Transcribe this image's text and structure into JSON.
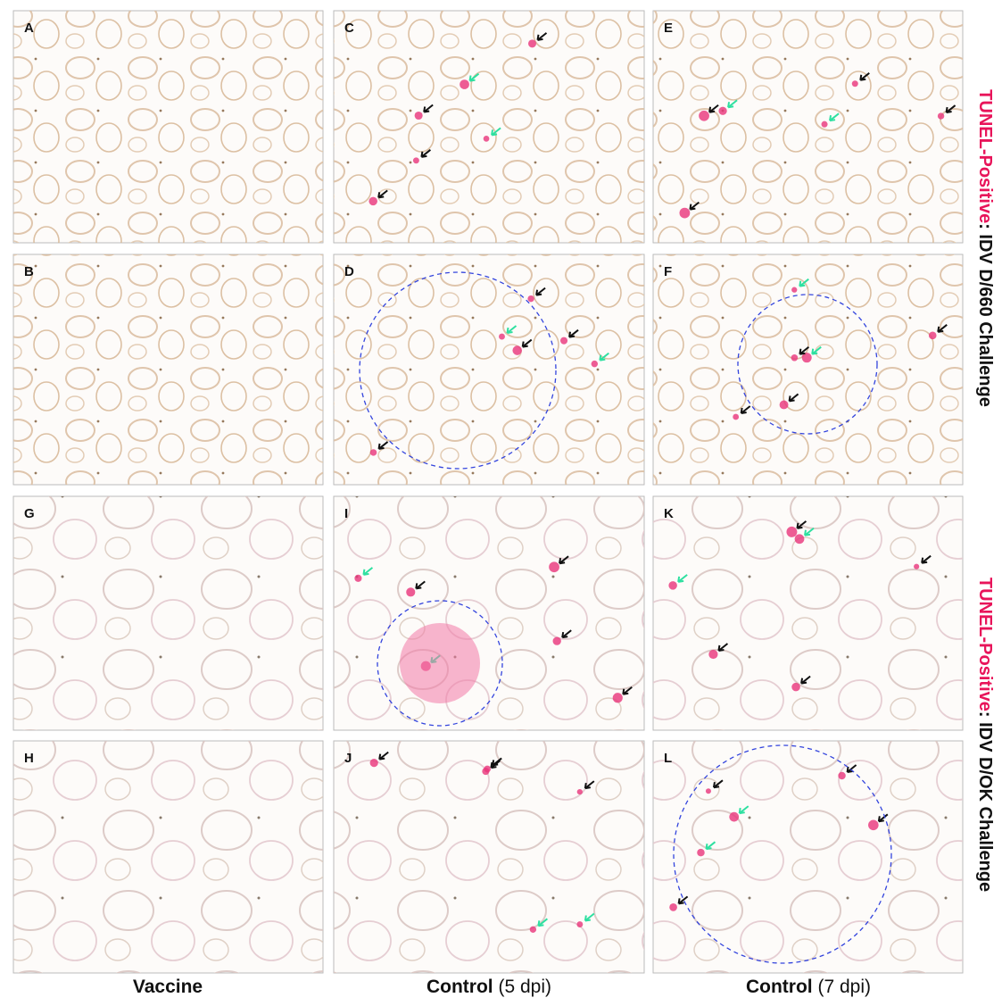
{
  "panels": [
    {
      "letter": "A"
    },
    {
      "letter": "C"
    },
    {
      "letter": "E"
    },
    {
      "letter": "B"
    },
    {
      "letter": "D"
    },
    {
      "letter": "F"
    },
    {
      "letter": "G"
    },
    {
      "letter": "I"
    },
    {
      "letter": "K"
    },
    {
      "letter": "H"
    },
    {
      "letter": "J"
    },
    {
      "letter": "L"
    }
  ],
  "columns": [
    {
      "label": "Vaccine"
    },
    {
      "label": "Control",
      "note": "(5 dpi)"
    },
    {
      "label": "Control",
      "note": "(7 dpi)"
    }
  ],
  "row_groups": [
    {
      "marker": "TUNEL-Positive",
      "text": ": IDV D/660  Challenge"
    },
    {
      "marker": "TUNEL-Positive",
      "text": ": IDV D/OK Challenge"
    }
  ]
}
